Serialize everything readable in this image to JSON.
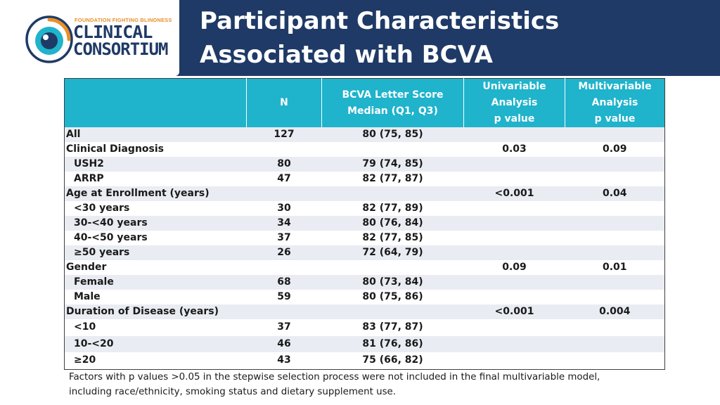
{
  "logo": {
    "tagline": "FOUNDATION FIGHTING BLINDNESS",
    "line1": "CLINICAL",
    "line2": "CONSORTIUM"
  },
  "title": "Participant Characteristics Associated with BCVA",
  "table": {
    "headers": {
      "n": "N",
      "bcva_line1": "BCVA Letter Score",
      "bcva_line2": "Median (Q1, Q3)",
      "uni_line1": "Univariable",
      "uni_line2": "Analysis",
      "uni_line3": "p value",
      "multi_line1": "Multivariable",
      "multi_line2": "Analysis",
      "multi_line3": "p value"
    },
    "rows": [
      {
        "label": "All",
        "n": "127",
        "bcva": "80 (75, 85)",
        "uni": "",
        "multi": ""
      },
      {
        "label": "Clinical Diagnosis",
        "n": "",
        "bcva": "",
        "uni": "0.03",
        "multi": "0.09"
      },
      {
        "label": "USH2",
        "n": "80",
        "bcva": "79 (74, 85)",
        "uni": "",
        "multi": ""
      },
      {
        "label": "ARRP",
        "n": "47",
        "bcva": "82 (77, 87)",
        "uni": "",
        "multi": ""
      },
      {
        "label": "Age at Enrollment (years)",
        "n": "",
        "bcva": "",
        "uni": "<0.001",
        "multi": "0.04"
      },
      {
        "label": "<30 years",
        "n": "30",
        "bcva": "82 (77, 89)",
        "uni": "",
        "multi": ""
      },
      {
        "label": "30-<40 years",
        "n": "34",
        "bcva": "80 (76, 84)",
        "uni": "",
        "multi": ""
      },
      {
        "label": "40-<50 years",
        "n": "37",
        "bcva": "82 (77, 85)",
        "uni": "",
        "multi": ""
      },
      {
        "label": "≥50 years",
        "n": "26",
        "bcva": "72 (64, 79)",
        "uni": "",
        "multi": ""
      },
      {
        "label": "Gender",
        "n": "",
        "bcva": "",
        "uni": "0.09",
        "multi": "0.01"
      },
      {
        "label": "Female",
        "n": "68",
        "bcva": "80 (73, 84)",
        "uni": "",
        "multi": ""
      },
      {
        "label": "Male",
        "n": "59",
        "bcva": "80 (75, 86)",
        "uni": "",
        "multi": ""
      },
      {
        "label": "Duration of Disease (years)",
        "n": "",
        "bcva": "",
        "uni": "<0.001",
        "multi": "0.004"
      },
      {
        "label": "<10",
        "n": "37",
        "bcva": "83 (77, 87)",
        "uni": "",
        "multi": ""
      },
      {
        "label": "10-<20",
        "n": "46",
        "bcva": "81 (76, 86)",
        "uni": "",
        "multi": ""
      },
      {
        "label": "≥20",
        "n": "43",
        "bcva": "75 (66, 82)",
        "uni": "",
        "multi": ""
      }
    ]
  },
  "footnote": {
    "line1": "Factors with p values >0.05 in the stepwise selection process were not included in the final multivariable model,",
    "line2": "including race/ethnicity, smoking status and dietary supplement use."
  },
  "colors": {
    "header_band": "#1f3a66",
    "table_header": "#1fb3cc",
    "row_stripe": "#e9ecf2",
    "logo_orange": "#e8902a"
  }
}
